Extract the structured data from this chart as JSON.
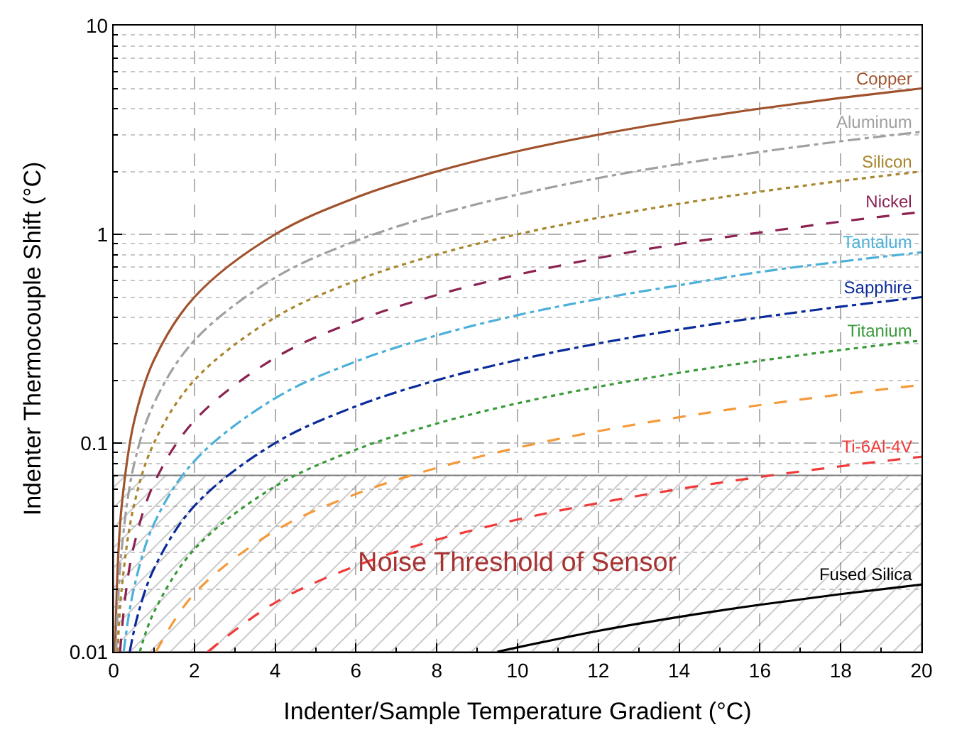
{
  "chart_data": {
    "type": "line",
    "xlabel": "Indenter/Sample Temperature Gradient (°C)",
    "ylabel": "Indenter Thermocouple Shift (°C)",
    "log": "y",
    "grid": true,
    "legend": false,
    "marker": "none",
    "xlim": [
      0,
      20
    ],
    "xticks": [
      0,
      2,
      4,
      6,
      8,
      10,
      12,
      14,
      16,
      18,
      20
    ],
    "ylim": [
      0.01,
      10
    ],
    "yticks": [
      0.01,
      0.1,
      1,
      10
    ],
    "bands": [
      {
        "axis": "y",
        "from": 0.01,
        "to": 0.07,
        "label": "Noise Threshold of Sensor",
        "color": "#808080"
      }
    ],
    "series": [
      {
        "name": "Copper",
        "color": "#a0522d",
        "line_style": "solid",
        "x": [
          0.04,
          0.1,
          0.2,
          0.5,
          1,
          2,
          4,
          6,
          8,
          10,
          12,
          14,
          16,
          18,
          20
        ],
        "values": [
          0.01,
          0.025,
          0.05,
          0.125,
          0.25,
          0.5,
          1,
          1.5,
          2,
          2.5,
          3,
          3.5,
          4,
          4.5,
          5
        ]
      },
      {
        "name": "Aluminum",
        "color": "#a0a0a0",
        "line_style": "dashdot",
        "x": [
          0.065,
          0.1,
          0.2,
          0.5,
          1,
          2,
          4,
          6,
          8,
          10,
          12,
          14,
          16,
          18,
          20
        ],
        "values": [
          0.01,
          0.0155,
          0.031,
          0.078,
          0.155,
          0.31,
          0.62,
          0.93,
          1.24,
          1.55,
          1.86,
          2.17,
          2.48,
          2.79,
          3.1
        ]
      },
      {
        "name": "Silicon",
        "color": "#a8862e",
        "line_style": "dotted",
        "x": [
          0.1,
          0.2,
          0.5,
          1,
          2,
          4,
          6,
          8,
          10,
          12,
          14,
          16,
          18,
          20
        ],
        "values": [
          0.01,
          0.02,
          0.05,
          0.1,
          0.2,
          0.4,
          0.6,
          0.8,
          1,
          1.2,
          1.4,
          1.6,
          1.8,
          2
        ]
      },
      {
        "name": "Nickel",
        "color": "#8b2252",
        "line_style": "dashed",
        "x": [
          0.16,
          0.3,
          0.5,
          1,
          2,
          4,
          6,
          8,
          10,
          12,
          14,
          16,
          18,
          20
        ],
        "values": [
          0.01,
          0.019,
          0.032,
          0.064,
          0.128,
          0.256,
          0.384,
          0.512,
          0.64,
          0.77,
          0.9,
          1.02,
          1.15,
          1.28
        ]
      },
      {
        "name": "Tantalum",
        "color": "#4cb0d8",
        "line_style": "dashdot",
        "x": [
          0.25,
          0.5,
          1,
          2,
          4,
          6,
          8,
          10,
          12,
          14,
          16,
          18,
          20
        ],
        "values": [
          0.01,
          0.02,
          0.041,
          0.082,
          0.164,
          0.246,
          0.328,
          0.41,
          0.49,
          0.57,
          0.66,
          0.74,
          0.82
        ]
      },
      {
        "name": "Sapphire",
        "color": "#0a2a9a",
        "line_style": "dashdot",
        "x": [
          0.4,
          0.6,
          1,
          2,
          4,
          6,
          8,
          10,
          12,
          14,
          16,
          18,
          20
        ],
        "values": [
          0.01,
          0.015,
          0.025,
          0.05,
          0.1,
          0.15,
          0.2,
          0.25,
          0.3,
          0.35,
          0.4,
          0.45,
          0.5
        ]
      },
      {
        "name": "Titanium",
        "color": "#3a9a3a",
        "line_style": "dotted",
        "x": [
          0.65,
          1,
          2,
          4,
          6,
          8,
          10,
          12,
          14,
          16,
          18,
          20
        ],
        "values": [
          0.01,
          0.0155,
          0.031,
          0.062,
          0.093,
          0.124,
          0.155,
          0.186,
          0.217,
          0.248,
          0.279,
          0.31
        ]
      },
      {
        "color": "#f59a3a",
        "line_style": "dashed",
        "x": [
          1.05,
          2,
          4,
          6,
          8,
          10,
          12,
          14,
          16,
          18,
          20
        ],
        "values": [
          0.01,
          0.019,
          0.038,
          0.057,
          0.076,
          0.095,
          0.114,
          0.133,
          0.152,
          0.171,
          0.19
        ]
      },
      {
        "name": "Ti-6Al-4V",
        "color": "#f03a3a",
        "line_style": "dashed",
        "x": [
          2.33,
          4,
          6,
          8,
          10,
          12,
          14,
          16,
          18,
          20
        ],
        "values": [
          0.01,
          0.0172,
          0.0258,
          0.0344,
          0.043,
          0.0516,
          0.0602,
          0.0688,
          0.0774,
          0.086
        ]
      },
      {
        "name": "Fused Silica",
        "color": "#000000",
        "line_style": "solid",
        "x": [
          9.5,
          12,
          14,
          16,
          18,
          20
        ],
        "values": [
          0.01,
          0.0126,
          0.0147,
          0.0168,
          0.0189,
          0.021
        ]
      }
    ]
  }
}
